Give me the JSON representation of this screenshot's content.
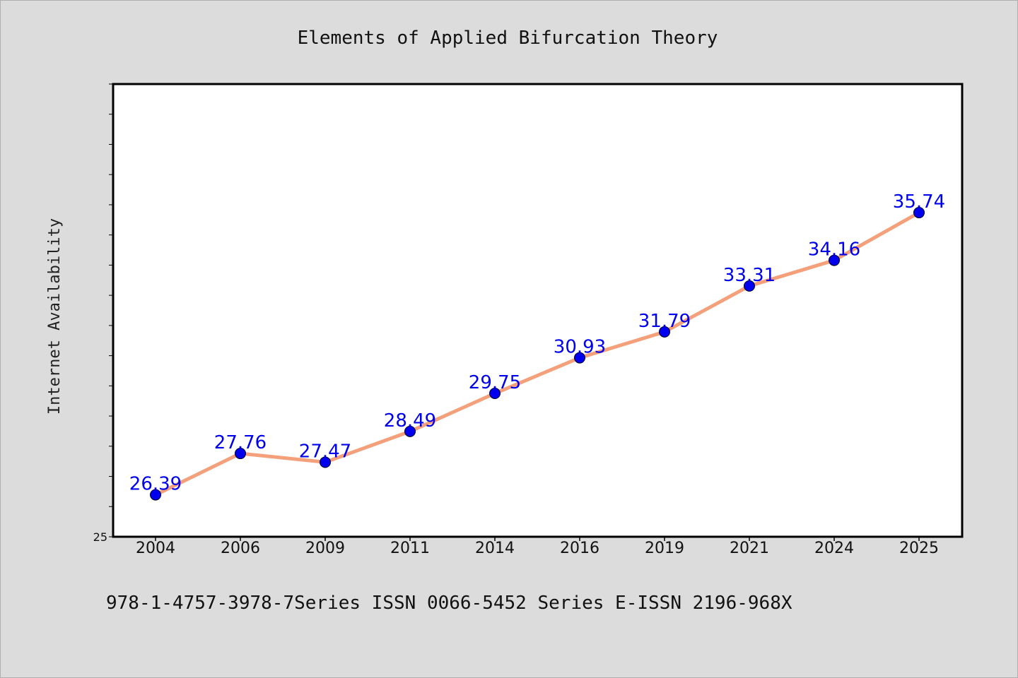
{
  "chart_data": {
    "type": "line",
    "title": "Elements of Applied Bifurcation Theory",
    "ylabel": "Internet Availability",
    "xlabel": "",
    "categories": [
      "2004",
      "2006",
      "2009",
      "2011",
      "2014",
      "2016",
      "2019",
      "2021",
      "2024",
      "2025"
    ],
    "values": [
      26.39,
      27.76,
      27.47,
      28.49,
      29.75,
      30.93,
      31.79,
      33.31,
      34.16,
      35.74
    ],
    "data_labels": [
      "26.39",
      "27.76",
      "27.47",
      "28.49",
      "29.75",
      "30.93",
      "31.79",
      "33.31",
      "34.16",
      "35.74"
    ],
    "ylim": [
      25,
      40
    ],
    "y_tick_labels": [
      "25"
    ],
    "grid": false,
    "legend": "none",
    "footer": "978-1-4757-3978-7Series ISSN 0066-5452 Series E-ISSN 2196-968X",
    "colors": {
      "background": "#dcdcdc",
      "plot_background": "#ffffff",
      "line": "#f4a07a",
      "marker": "#0000ee",
      "data_label": "#0000ee"
    }
  }
}
